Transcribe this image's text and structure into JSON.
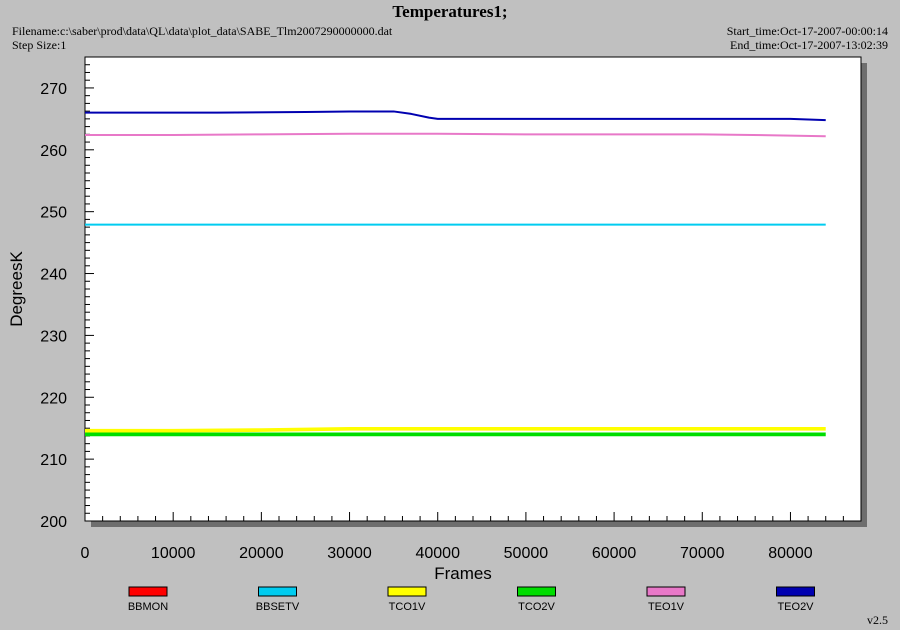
{
  "header": {
    "title": "Temperatures1;",
    "filename": "Filename:c:\\saber\\prod\\data\\QL\\data\\plot_data\\SABE_Tlm2007290000000.dat",
    "step_size": "Step Size:1",
    "start_time": "Start_time:Oct-17-2007-00:00:14",
    "end_time": "End_time:Oct-17-2007-13:02:39"
  },
  "footer": {
    "version": "v2.5"
  },
  "chart_data": {
    "type": "line",
    "title": "Temperatures1;",
    "xlabel": "Frames",
    "ylabel": "DegreesK",
    "xlim": [
      0,
      88000
    ],
    "ylim": [
      200,
      275
    ],
    "x_ticks": [
      0,
      10000,
      20000,
      30000,
      40000,
      50000,
      60000,
      70000,
      80000
    ],
    "y_ticks": [
      200,
      210,
      220,
      230,
      240,
      250,
      260,
      270
    ],
    "grid": false,
    "legend_position": "bottom",
    "series": [
      {
        "name": "BBMON",
        "color": "#ff0000",
        "x": [],
        "y": []
      },
      {
        "name": "BBSETV",
        "color": "#00ccf0",
        "x": [
          0,
          84000
        ],
        "y": [
          247.9,
          247.9
        ],
        "band": 0.3
      },
      {
        "name": "TCO1V",
        "color": "#ffff00",
        "x": [
          0,
          10000,
          20000,
          30000,
          40000,
          50000,
          60000,
          70000,
          84000
        ],
        "y": [
          214.6,
          214.6,
          214.7,
          214.9,
          214.9,
          214.9,
          214.9,
          214.9,
          214.9
        ],
        "band": 0.6
      },
      {
        "name": "TCO2V",
        "color": "#00dd00",
        "x": [
          0,
          10000,
          20000,
          30000,
          40000,
          50000,
          60000,
          70000,
          84000
        ],
        "y": [
          214.0,
          214.0,
          214.0,
          214.0,
          214.0,
          214.0,
          214.0,
          214.0,
          214.0
        ],
        "band": 0.6
      },
      {
        "name": "TEO1V",
        "color": "#e878c8",
        "x": [
          0,
          10000,
          20000,
          30000,
          40000,
          50000,
          60000,
          70000,
          80000,
          84000
        ],
        "y": [
          262.4,
          262.4,
          262.5,
          262.6,
          262.6,
          262.5,
          262.5,
          262.5,
          262.3,
          262.2
        ],
        "band": 0.3
      },
      {
        "name": "TEO2V",
        "color": "#0000b0",
        "x": [
          0,
          10000,
          15000,
          25000,
          30000,
          35000,
          37000,
          39000,
          40000,
          50000,
          60000,
          70000,
          80000,
          84000
        ],
        "y": [
          266.0,
          266.0,
          266.0,
          266.1,
          266.2,
          266.2,
          265.8,
          265.2,
          265.0,
          265.0,
          265.0,
          265.0,
          265.0,
          264.8
        ],
        "band": 0.25
      }
    ]
  }
}
